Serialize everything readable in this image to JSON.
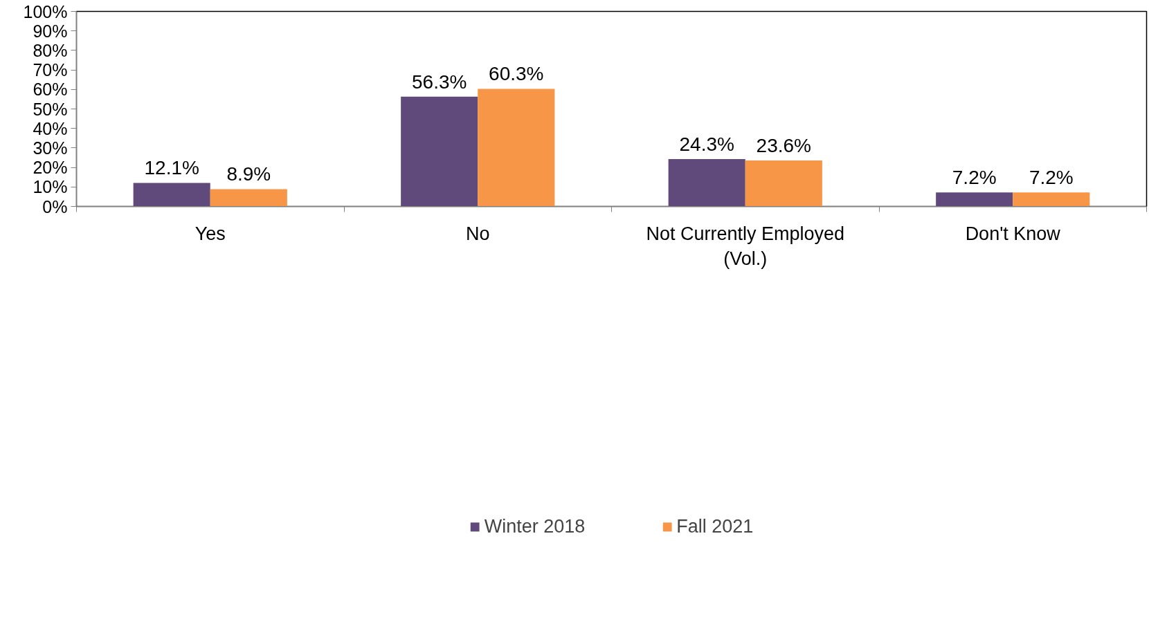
{
  "chart_data": {
    "type": "bar",
    "categories": [
      "Yes",
      "No",
      "Not Currently Employed (Vol.)",
      "Don't Know"
    ],
    "series": [
      {
        "name": "Winter 2018",
        "color": "#604a7b",
        "values": [
          12.1,
          56.3,
          24.3,
          7.2
        ],
        "value_labels": [
          "12.1%",
          "56.3%",
          "24.3%",
          "7.2%"
        ]
      },
      {
        "name": "Fall 2021",
        "color": "#f79646",
        "values": [
          8.9,
          60.3,
          23.6,
          7.2
        ],
        "value_labels": [
          "8.9%",
          "60.3%",
          "23.6%",
          "7.2%"
        ]
      }
    ],
    "ylim": [
      0,
      100
    ],
    "yticks": [
      {
        "value": 0,
        "label": "0%"
      },
      {
        "value": 10,
        "label": "10%"
      },
      {
        "value": 20,
        "label": "20%"
      },
      {
        "value": 30,
        "label": "30%"
      },
      {
        "value": 40,
        "label": "40%"
      },
      {
        "value": 50,
        "label": "50%"
      },
      {
        "value": 60,
        "label": "60%"
      },
      {
        "value": 70,
        "label": "70%"
      },
      {
        "value": 80,
        "label": "80%"
      },
      {
        "value": 90,
        "label": "90%"
      },
      {
        "value": 100,
        "label": "100%"
      }
    ],
    "grid": false,
    "legend": "bottom"
  }
}
